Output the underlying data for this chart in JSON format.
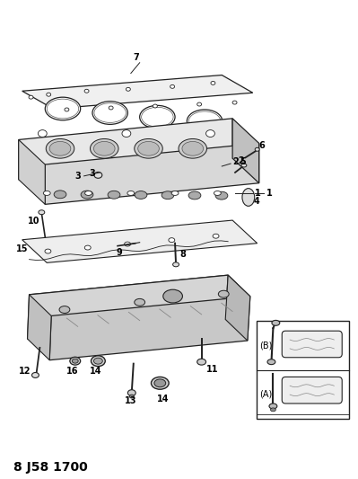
{
  "title": "8 J58 1700",
  "bg_color": "#ffffff",
  "title_fontsize": 10,
  "fig_width": 3.99,
  "fig_height": 5.33,
  "dpi": 100,
  "line_color": "#222222",
  "light_gray": "#cccccc",
  "mid_gray": "#aaaaaa",
  "dark_gray": "#666666"
}
